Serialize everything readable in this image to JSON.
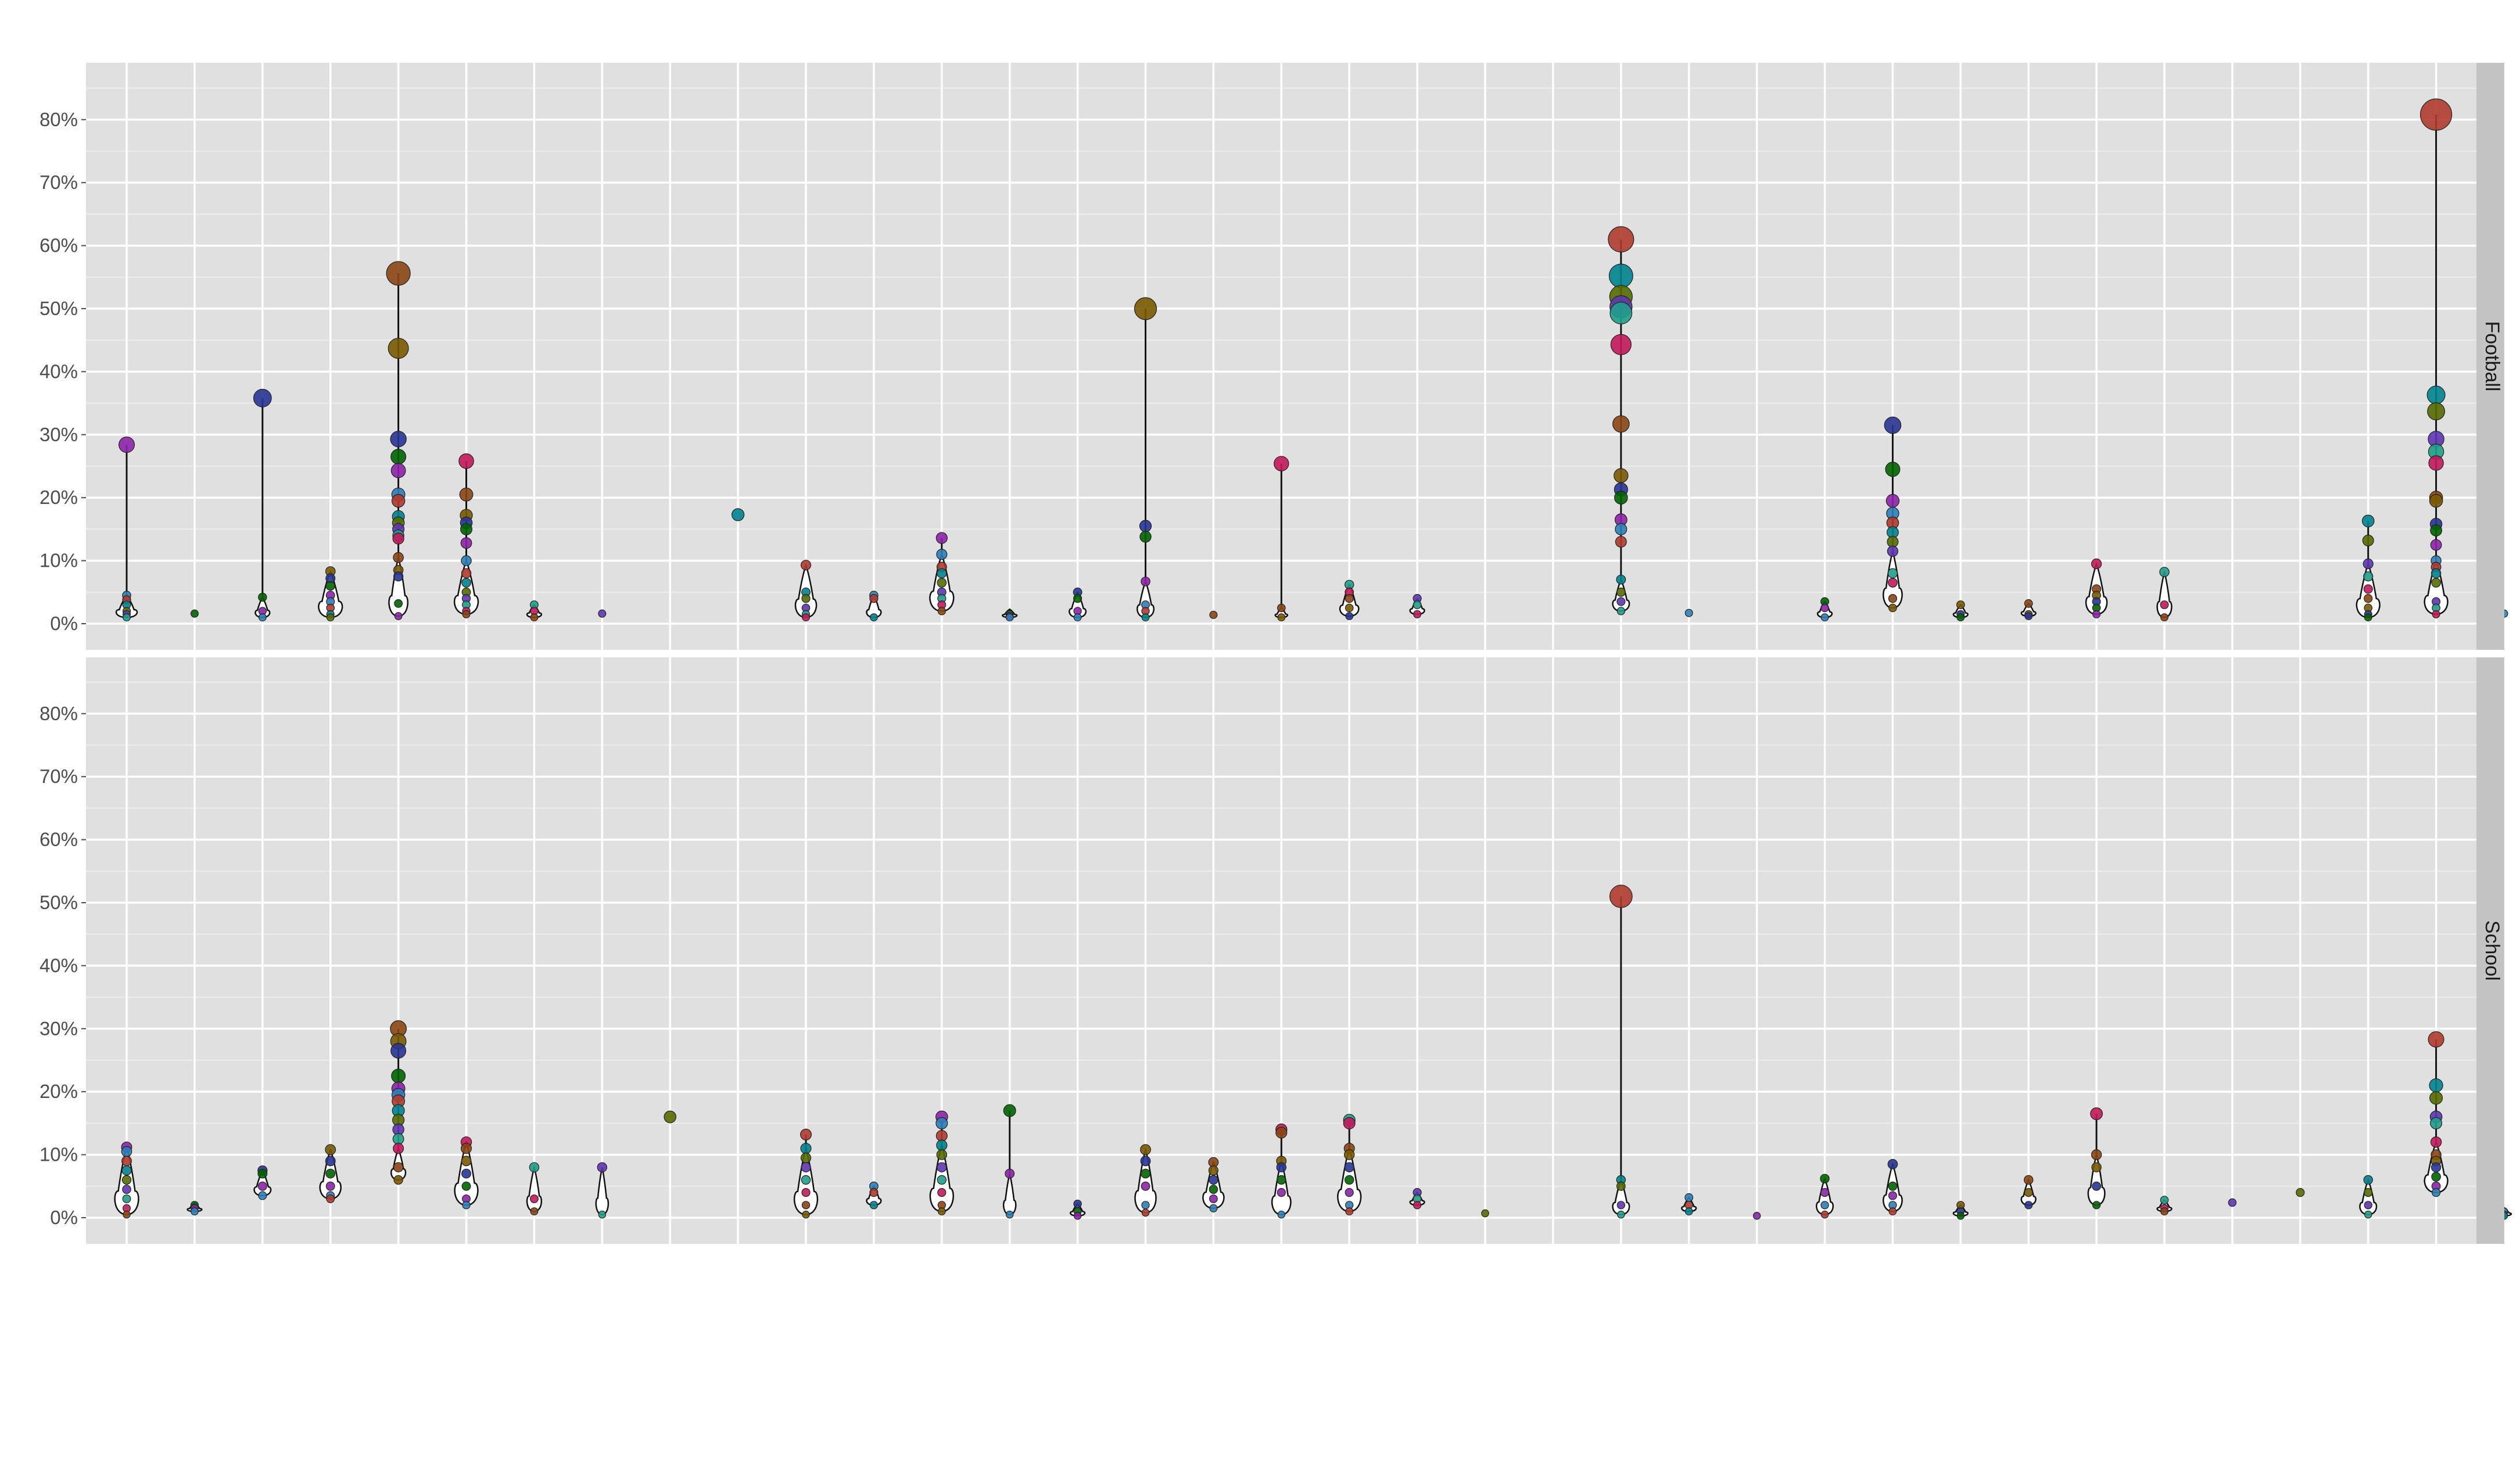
{
  "chart_data": {
    "type": "scatter",
    "panel_background": "#e0e0e0",
    "strip_background": "#c4c4c4",
    "grid_color": "#ffffff",
    "ylim": [
      -0.03,
      0.88
    ],
    "y_ticks": [
      0,
      0.1,
      0.2,
      0.3,
      0.4,
      0.5,
      0.6,
      0.7,
      0.8
    ],
    "y_tick_labels": [
      "0%",
      "10%",
      "20%",
      "30%",
      "40%",
      "50%",
      "60%",
      "70%",
      "80%"
    ],
    "n_categories": 36,
    "category_labels": [],
    "grid": true,
    "legend": "none",
    "xlabel": "",
    "ylabel": "",
    "point_palette": [
      "#2c7fb8",
      "#1f9e89",
      "#006400",
      "#556b00",
      "#7a5a00",
      "#b03a2e",
      "#c2185b",
      "#8e24aa",
      "#5e35b1",
      "#283593",
      "#00838f",
      "#8b4513"
    ],
    "panels": [
      {
        "facet_label": "Football",
        "groups": [
          {
            "x": 1,
            "values": [
              0.284,
              0.045,
              0.038,
              0.03,
              0.02,
              0.015,
              0.01
            ]
          },
          {
            "x": 2,
            "values": [
              0.016
            ]
          },
          {
            "x": 3,
            "values": [
              0.358,
              0.042,
              0.02,
              0.01
            ]
          },
          {
            "x": 4,
            "values": [
              0.083,
              0.072,
              0.06,
              0.045,
              0.035,
              0.025,
              0.015,
              0.01
            ]
          },
          {
            "x": 5,
            "values": [
              0.556,
              0.437,
              0.293,
              0.265,
              0.243,
              0.205,
              0.195,
              0.17,
              0.16,
              0.15,
              0.14,
              0.135,
              0.105,
              0.085,
              0.075,
              0.032,
              0.012
            ]
          },
          {
            "x": 6,
            "values": [
              0.258,
              0.205,
              0.172,
              0.16,
              0.15,
              0.128,
              0.1,
              0.08,
              0.065,
              0.05,
              0.04,
              0.03,
              0.02,
              0.015
            ]
          },
          {
            "x": 7,
            "values": [
              0.03,
              0.02,
              0.01
            ]
          },
          {
            "x": 8,
            "values": [
              0.016
            ]
          },
          {
            "x": 10,
            "values": [
              0.173
            ]
          },
          {
            "x": 11,
            "values": [
              0.093,
              0.05,
              0.04,
              0.025,
              0.015,
              0.01
            ]
          },
          {
            "x": 12,
            "values": [
              0.045,
              0.04,
              0.01
            ]
          },
          {
            "x": 13,
            "values": [
              0.136,
              0.11,
              0.09,
              0.08,
              0.065,
              0.05,
              0.04,
              0.03,
              0.02
            ]
          },
          {
            "x": 14,
            "values": [
              0.015,
              0.012,
              0.01
            ]
          },
          {
            "x": 15,
            "values": [
              0.05,
              0.04,
              0.02,
              0.01
            ]
          },
          {
            "x": 16,
            "values": [
              0.5,
              0.155,
              0.138,
              0.067,
              0.03,
              0.02,
              0.01
            ]
          },
          {
            "x": 17,
            "values": [
              0.014
            ]
          },
          {
            "x": 18,
            "values": [
              0.254,
              0.025,
              0.01
            ]
          },
          {
            "x": 19,
            "values": [
              0.062,
              0.05,
              0.04,
              0.025,
              0.012
            ]
          },
          {
            "x": 20,
            "values": [
              0.04,
              0.03,
              0.015
            ]
          },
          {
            "x": 23,
            "values": [
              0.61,
              0.552,
              0.519,
              0.503,
              0.493,
              0.443,
              0.317,
              0.235,
              0.213,
              0.2,
              0.165,
              0.15,
              0.13,
              0.07,
              0.05,
              0.035,
              0.02
            ]
          },
          {
            "x": 24,
            "values": [
              0.017
            ]
          },
          {
            "x": 26,
            "values": [
              0.035,
              0.025,
              0.01
            ]
          },
          {
            "x": 27,
            "values": [
              0.315,
              0.245,
              0.195,
              0.175,
              0.16,
              0.145,
              0.13,
              0.115,
              0.08,
              0.065,
              0.04,
              0.025
            ]
          },
          {
            "x": 28,
            "values": [
              0.03,
              0.015,
              0.01
            ]
          },
          {
            "x": 29,
            "values": [
              0.032,
              0.015,
              0.012
            ]
          },
          {
            "x": 30,
            "values": [
              0.095,
              0.055,
              0.045,
              0.035,
              0.025,
              0.015
            ]
          },
          {
            "x": 31,
            "values": [
              0.082,
              0.03,
              0.01
            ]
          },
          {
            "x": 34,
            "values": [
              0.163,
              0.132,
              0.095,
              0.075,
              0.055,
              0.04,
              0.025,
              0.015,
              0.01
            ]
          },
          {
            "x": 35,
            "values": [
              0.808,
              0.363,
              0.337,
              0.293,
              0.273,
              0.255,
              0.2,
              0.195,
              0.158,
              0.148,
              0.125,
              0.1,
              0.09,
              0.08,
              0.065,
              0.035,
              0.025,
              0.015
            ]
          },
          {
            "x": 36,
            "values": [
              0.016
            ]
          }
        ]
      },
      {
        "facet_label": "School",
        "groups": [
          {
            "x": 1,
            "values": [
              0.112,
              0.105,
              0.09,
              0.075,
              0.06,
              0.045,
              0.03,
              0.015,
              0.005
            ]
          },
          {
            "x": 2,
            "values": [
              0.02,
              0.015,
              0.01
            ]
          },
          {
            "x": 3,
            "values": [
              0.075,
              0.07,
              0.05,
              0.035
            ]
          },
          {
            "x": 4,
            "values": [
              0.108,
              0.09,
              0.07,
              0.05,
              0.035,
              0.03
            ]
          },
          {
            "x": 5,
            "values": [
              0.3,
              0.28,
              0.265,
              0.225,
              0.205,
              0.195,
              0.185,
              0.17,
              0.155,
              0.14,
              0.125,
              0.11,
              0.08,
              0.06
            ]
          },
          {
            "x": 6,
            "values": [
              0.12,
              0.11,
              0.09,
              0.07,
              0.05,
              0.03,
              0.02
            ]
          },
          {
            "x": 7,
            "values": [
              0.08,
              0.03,
              0.01
            ]
          },
          {
            "x": 8,
            "values": [
              0.08,
              0.005
            ]
          },
          {
            "x": 9,
            "values": [
              0.16
            ]
          },
          {
            "x": 11,
            "values": [
              0.132,
              0.11,
              0.095,
              0.08,
              0.06,
              0.04,
              0.02,
              0.005
            ]
          },
          {
            "x": 12,
            "values": [
              0.05,
              0.04,
              0.02
            ]
          },
          {
            "x": 13,
            "values": [
              0.16,
              0.15,
              0.13,
              0.115,
              0.1,
              0.08,
              0.06,
              0.04,
              0.02,
              0.01
            ]
          },
          {
            "x": 14,
            "values": [
              0.17,
              0.07,
              0.005
            ]
          },
          {
            "x": 15,
            "values": [
              0.022,
              0.01,
              0.003
            ]
          },
          {
            "x": 16,
            "values": [
              0.108,
              0.09,
              0.07,
              0.05,
              0.02,
              0.008
            ]
          },
          {
            "x": 17,
            "values": [
              0.088,
              0.075,
              0.06,
              0.045,
              0.03,
              0.015
            ]
          },
          {
            "x": 18,
            "values": [
              0.14,
              0.135,
              0.09,
              0.08,
              0.06,
              0.04,
              0.005
            ]
          },
          {
            "x": 19,
            "values": [
              0.155,
              0.15,
              0.11,
              0.1,
              0.08,
              0.06,
              0.04,
              0.02,
              0.01
            ]
          },
          {
            "x": 20,
            "values": [
              0.04,
              0.03,
              0.02
            ]
          },
          {
            "x": 21,
            "values": [
              0.007
            ]
          },
          {
            "x": 23,
            "values": [
              0.51,
              0.06,
              0.05,
              0.02,
              0.005
            ]
          },
          {
            "x": 24,
            "values": [
              0.032,
              0.02,
              0.01
            ]
          },
          {
            "x": 25,
            "values": [
              0.003
            ]
          },
          {
            "x": 26,
            "values": [
              0.062,
              0.04,
              0.02,
              0.005
            ]
          },
          {
            "x": 27,
            "values": [
              0.085,
              0.05,
              0.035,
              0.02,
              0.01
            ]
          },
          {
            "x": 28,
            "values": [
              0.02,
              0.01,
              0.003
            ]
          },
          {
            "x": 29,
            "values": [
              0.06,
              0.04,
              0.02
            ]
          },
          {
            "x": 30,
            "values": [
              0.165,
              0.1,
              0.08,
              0.05,
              0.02
            ]
          },
          {
            "x": 31,
            "values": [
              0.028,
              0.015,
              0.01
            ]
          },
          {
            "x": 32,
            "values": [
              0.024
            ]
          },
          {
            "x": 33,
            "values": [
              0.04
            ]
          },
          {
            "x": 34,
            "values": [
              0.06,
              0.04,
              0.02,
              0.005
            ]
          },
          {
            "x": 35,
            "values": [
              0.283,
              0.21,
              0.19,
              0.16,
              0.15,
              0.12,
              0.1,
              0.09,
              0.08,
              0.065,
              0.05,
              0.04
            ]
          },
          {
            "x": 36,
            "values": [
              0.01,
              0.005,
              0.003
            ]
          }
        ]
      }
    ]
  }
}
